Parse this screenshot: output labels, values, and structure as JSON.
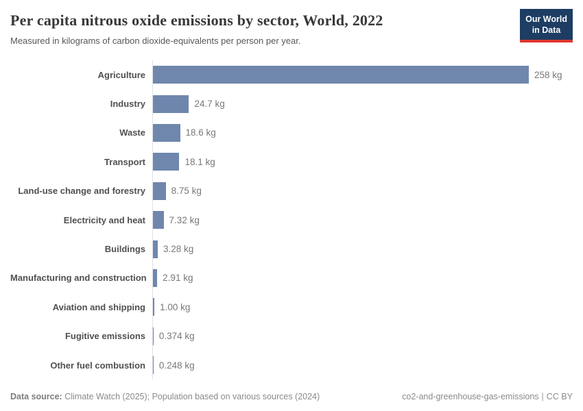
{
  "header": {
    "title": "Per capita nitrous oxide emissions by sector, World, 2022",
    "subtitle": "Measured in kilograms of carbon dioxide-equivalents per person per year.",
    "logo": {
      "line1": "Our World",
      "line2": "in Data"
    }
  },
  "chart_data": {
    "type": "bar",
    "orientation": "horizontal",
    "title": "Per capita nitrous oxide emissions by sector, World, 2022",
    "subtitle": "Measured in kilograms of carbon dioxide-equivalents per person per year.",
    "unit": "kg",
    "categories": [
      "Agriculture",
      "Industry",
      "Waste",
      "Transport",
      "Land-use change and forestry",
      "Electricity and heat",
      "Buildings",
      "Manufacturing and construction",
      "Aviation and shipping",
      "Fugitive emissions",
      "Other fuel combustion"
    ],
    "values": [
      258,
      24.7,
      18.6,
      18.1,
      8.75,
      7.32,
      3.28,
      2.91,
      1.0,
      0.374,
      0.248
    ],
    "value_labels": [
      "258 kg",
      "24.7 kg",
      "18.6 kg",
      "18.1 kg",
      "8.75 kg",
      "7.32 kg",
      "3.28 kg",
      "2.91 kg",
      "1.00 kg",
      "0.374 kg",
      "0.248 kg"
    ],
    "xlim": [
      0,
      258
    ],
    "grid": false,
    "legend": "none",
    "bar_color": "#6f87ad",
    "axis_color": "#dde1e7"
  },
  "footer": {
    "data_source_label": "Data source:",
    "data_source_text": "Climate Watch (2025); Population based on various sources (2024)",
    "slug": "co2-and-greenhouse-gas-emissions",
    "separator": "|",
    "license": "CC BY"
  }
}
